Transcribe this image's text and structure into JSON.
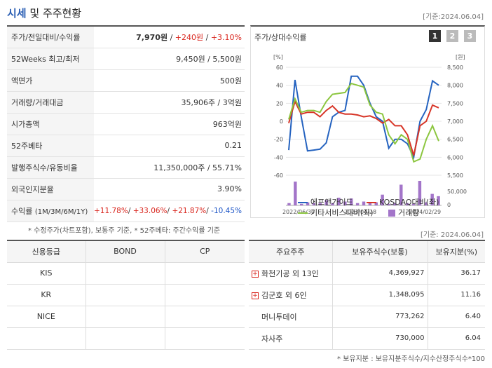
{
  "header": {
    "title_highlight": "시세",
    "title_rest": " 및 주주현황",
    "date": "[기준:2024.06.04]"
  },
  "summary": {
    "rows": [
      {
        "label": "주가/전일대비/수익률",
        "price": "7,970원",
        "change": "+240원",
        "rate": "+3.10%"
      },
      {
        "label": "52Weeks 최고/최저",
        "value": "9,450원 / 5,500원"
      },
      {
        "label": "액면가",
        "value": "500원"
      },
      {
        "label": "거래량/거래대금",
        "value": "35,906주 / 3억원"
      },
      {
        "label": "시가총액",
        "value": "963억원"
      },
      {
        "label": "52주베타",
        "value": "0.21"
      },
      {
        "label": "발행주식수/유동비율",
        "value": "11,350,000주 / 55.71%"
      },
      {
        "label": "외국인지분율",
        "value": "3.90%"
      }
    ],
    "returns_label": "수익률",
    "returns_sub": "(1M/3M/6M/1Y)",
    "returns": [
      "+11.78%",
      "+33.06%",
      "+21.87%",
      "-10.45%"
    ],
    "note": "* 수정주가(차트포함), 보통주 기준, * 52주베타: 주간수익률 기준"
  },
  "chart_data": {
    "type": "line",
    "title": "주가/상대수익률",
    "pages": [
      "1",
      "2",
      "3"
    ],
    "left_unit": "[%]",
    "right_unit": "[원]",
    "ylim_left": [
      -60,
      60
    ],
    "yticks_left": [
      "60",
      "40",
      "20",
      "0",
      "-20",
      "-40",
      "-60"
    ],
    "ylim_right": [
      5500,
      8500
    ],
    "yticks_right": [
      "8,500",
      "8,000",
      "7,500",
      "7,000",
      "6,500",
      "6,000",
      "5,500"
    ],
    "volume_tick": "50,000",
    "xticks": [
      "2022/06/30",
      "2023/04/28",
      "2024/02/29"
    ],
    "series": [
      {
        "name": "에프앤가이드",
        "color": "#2563c0",
        "values": [
          -32,
          46,
          5,
          -33,
          -32,
          -31,
          -24,
          5,
          10,
          12,
          50,
          50,
          40,
          20,
          5,
          0,
          -30,
          -20,
          -20,
          -25,
          -40,
          0,
          13,
          45,
          40
        ]
      },
      {
        "name": "KOSDAQ대비(좌)",
        "color": "#d73527",
        "values": [
          -2,
          22,
          8,
          10,
          10,
          5,
          12,
          17,
          10,
          8,
          8,
          7,
          5,
          6,
          3,
          -2,
          2,
          -5,
          -5,
          -15,
          -38,
          -5,
          0,
          18,
          15
        ]
      },
      {
        "name": "기타서비스대비(좌)",
        "color": "#8cc63f",
        "values": [
          2,
          25,
          10,
          12,
          12,
          10,
          22,
          30,
          31,
          32,
          42,
          40,
          38,
          18,
          10,
          8,
          -15,
          -25,
          -15,
          -20,
          -45,
          -42,
          -20,
          -5,
          -22
        ]
      }
    ],
    "volume_name": "거래량",
    "volume_color": "#a375c9",
    "volume": [
      3,
      31,
      2,
      4,
      3,
      3,
      7,
      3,
      10,
      5,
      9,
      3,
      5,
      4,
      4,
      14,
      2,
      3,
      27,
      3,
      2,
      32,
      4,
      15,
      12
    ]
  },
  "date2": "[기준: 2024.06.04]",
  "credit": {
    "headers": [
      "신용등급",
      "BOND",
      "CP"
    ],
    "rows": [
      [
        "KIS",
        "",
        ""
      ],
      [
        "KR",
        "",
        ""
      ],
      [
        "NICE",
        "",
        ""
      ]
    ]
  },
  "holders": {
    "headers": [
      "주요주주",
      "보유주식수(보통)",
      "보유지분(%)"
    ],
    "rows": [
      {
        "name": "화천기공 외 13인",
        "shares": "4,369,927",
        "pct": "36.17",
        "expand": "+"
      },
      {
        "name": "김군호 외 6인",
        "shares": "1,348,095",
        "pct": "11.16",
        "expand": "+"
      },
      {
        "name": "머니투데이",
        "shares": "773,262",
        "pct": "6.40",
        "expand": ""
      },
      {
        "name": "자사주",
        "shares": "730,000",
        "pct": "6.04",
        "expand": ""
      }
    ],
    "note": "* 보유지분 : 보유지분주식수/지수산정주식수*100"
  }
}
